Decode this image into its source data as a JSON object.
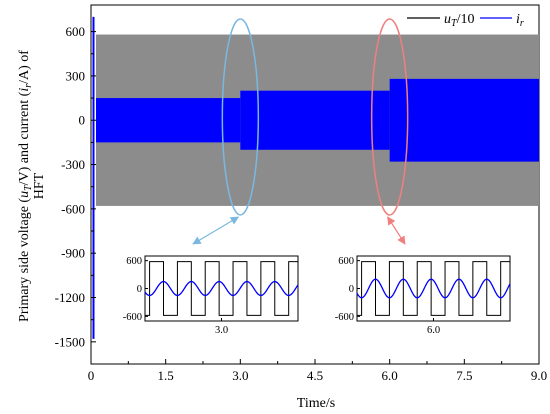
{
  "chart_data": {
    "type": "line",
    "xlabel": "Time/s",
    "ylabel_lines": [
      "Primary side  voltage (uT/V) and current (ir/A) of",
      "HFT"
    ],
    "xlim": [
      0,
      9.0
    ],
    "ylim": [
      -1650,
      780
    ],
    "x_ticks": [
      "0",
      "1.5",
      "3.0",
      "4.5",
      "6.0",
      "7.5",
      "9.0"
    ],
    "y_ticks": [
      "600",
      "300",
      "0",
      "-300",
      "-600",
      "-900",
      "-1200",
      "-1500"
    ],
    "legend_position": "top-right",
    "series": [
      {
        "name": "uT/10",
        "color": "#000000",
        "envelope": [
          {
            "x_start": 0.1,
            "x_end": 9.0,
            "amplitude": 580
          }
        ]
      },
      {
        "name": "ir",
        "color": "#0000ff",
        "envelope": [
          {
            "x_start": 0.1,
            "x_end": 3.0,
            "amplitude": 150
          },
          {
            "x_start": 3.0,
            "x_end": 6.0,
            "amplitude": 200
          },
          {
            "x_start": 6.0,
            "x_end": 9.0,
            "amplitude": 280
          }
        ]
      }
    ],
    "startup_transient": {
      "x": 0.05,
      "y_min": -1480,
      "y_max": 700
    },
    "highlights": [
      {
        "center_x": 3.0,
        "color": "#7ab8e0"
      },
      {
        "center_x": 6.0,
        "color": "#f08080"
      }
    ],
    "insets": [
      {
        "x_tick": "3.0",
        "y_ticks": [
          "600",
          "0",
          "-600"
        ],
        "voltage_amplitude": 580,
        "current_amplitude": 150,
        "periods": 5.5
      },
      {
        "x_tick": "6.0",
        "y_ticks": [
          "600",
          "0",
          "-600"
        ],
        "voltage_amplitude": 580,
        "current_amplitude": 200,
        "periods": 5.5
      }
    ]
  }
}
